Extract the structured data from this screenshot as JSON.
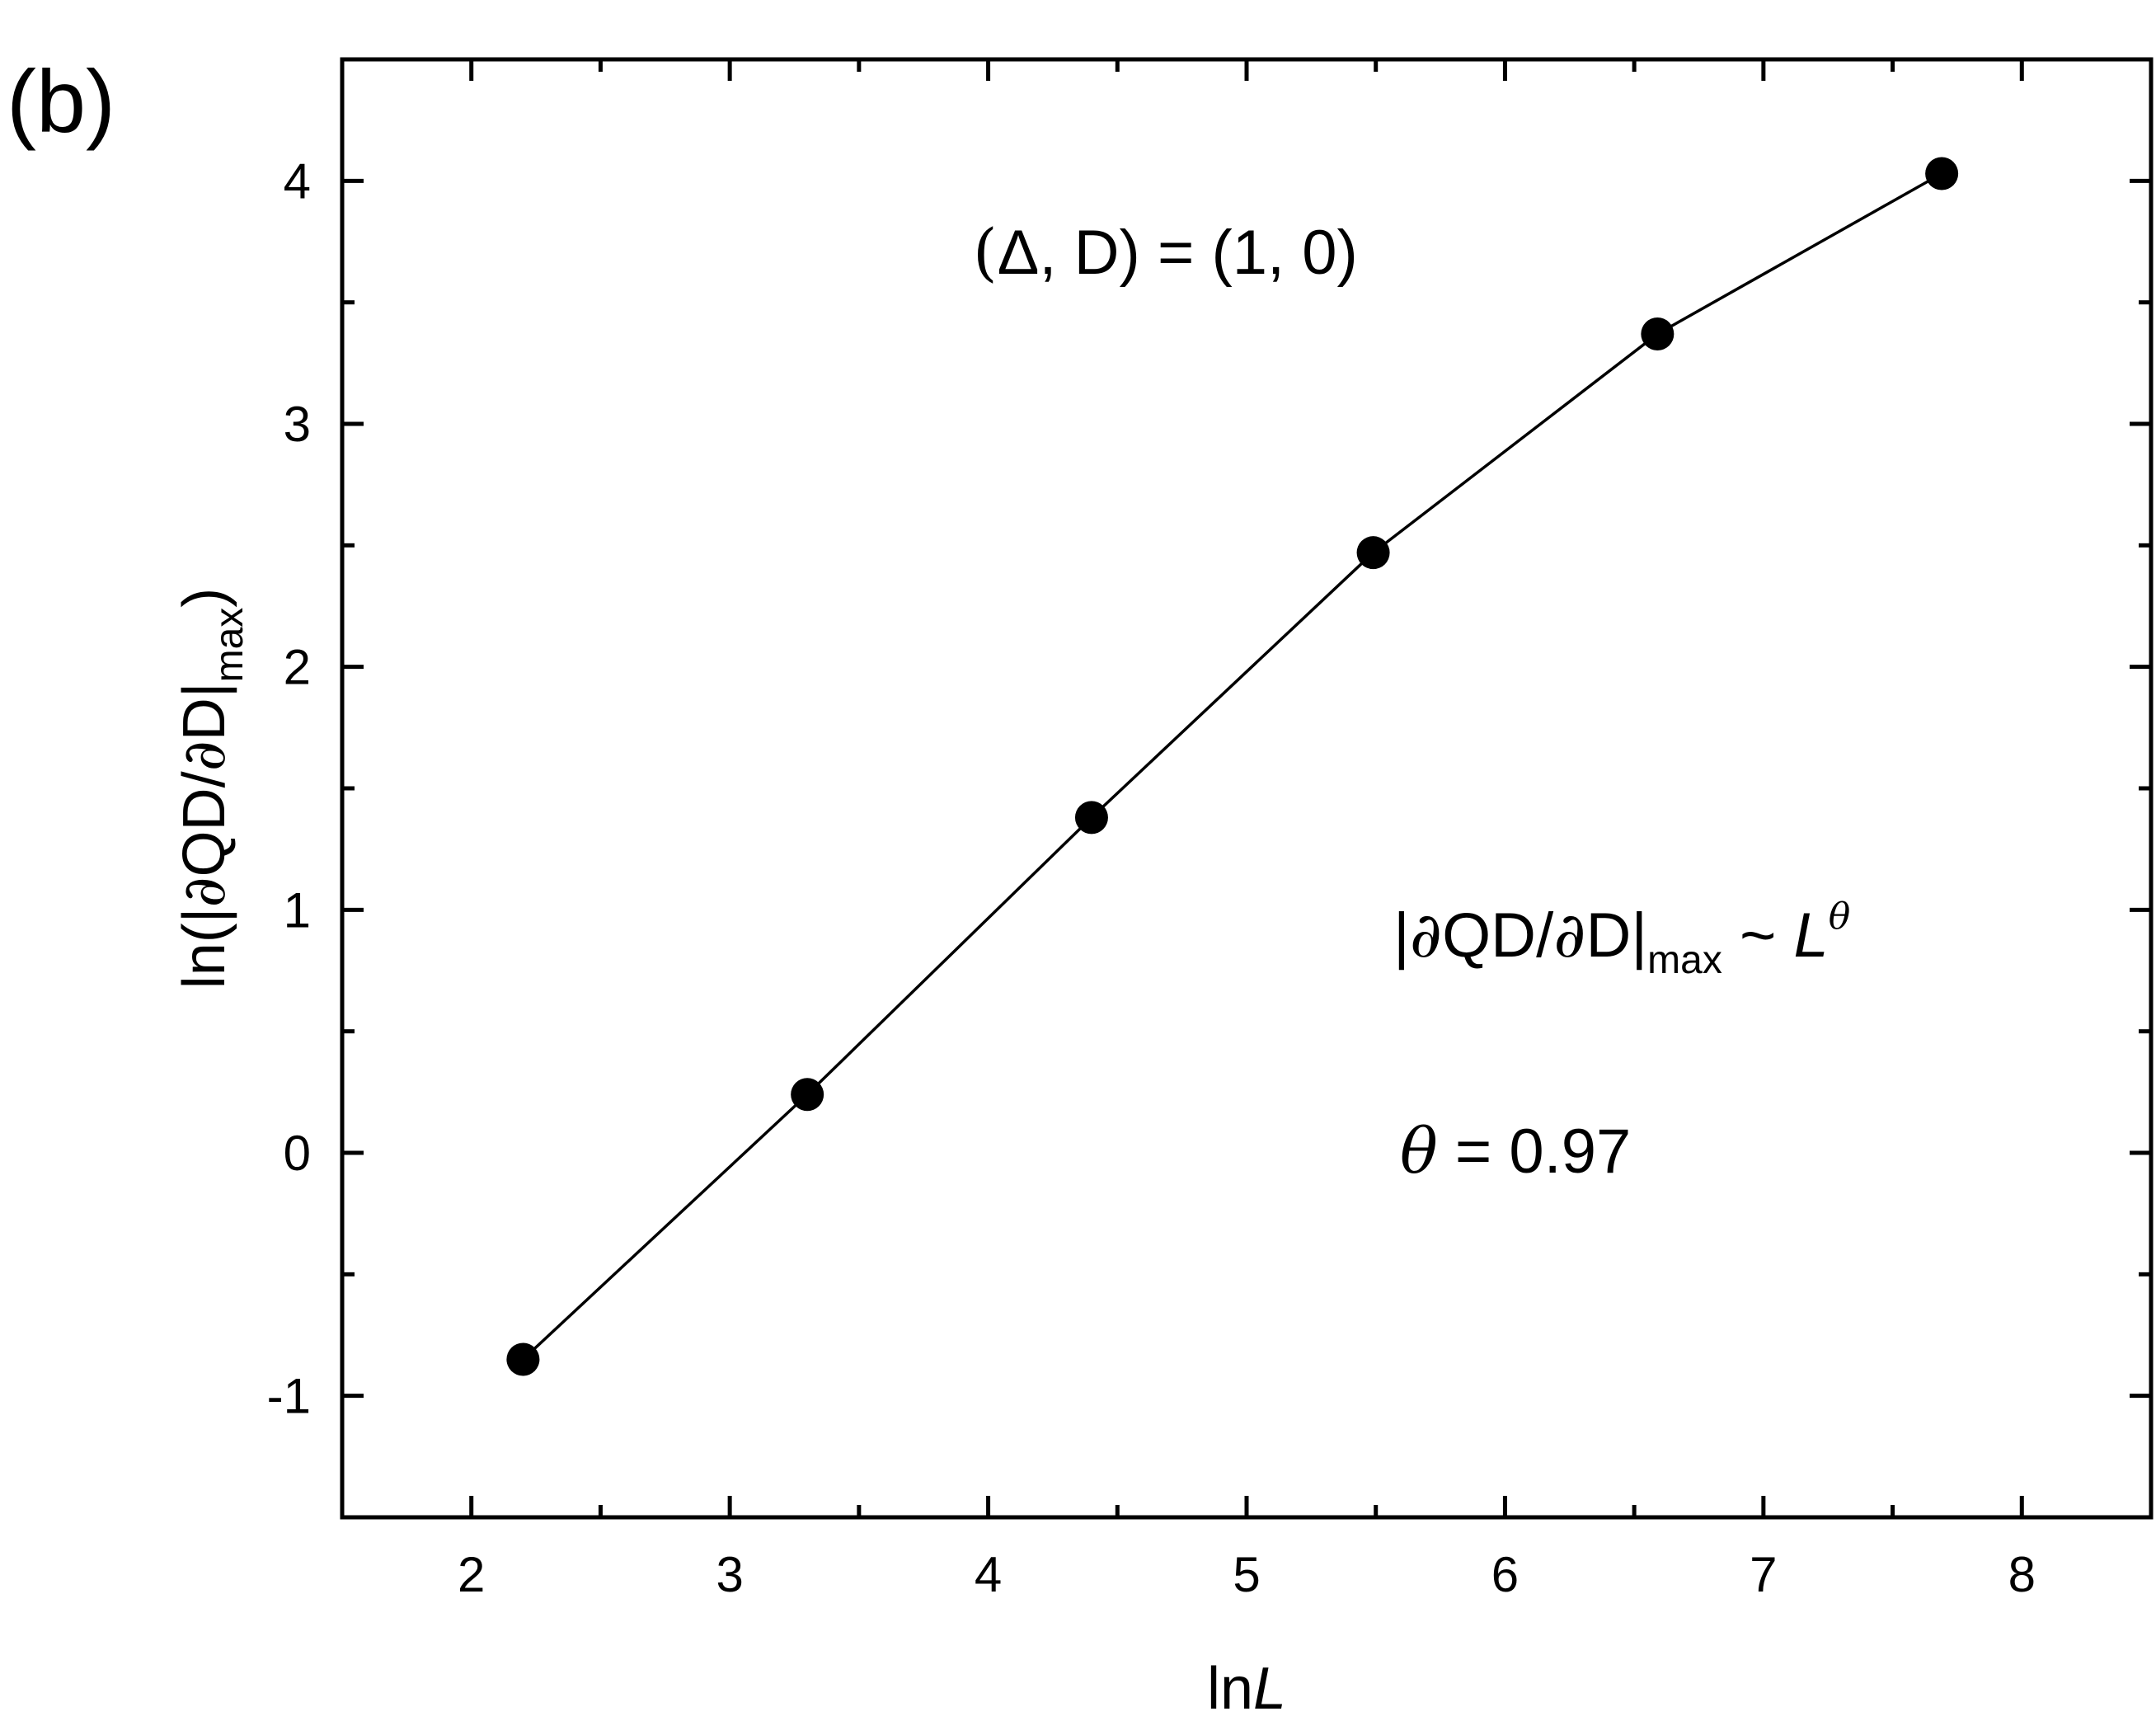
{
  "panel_label": "(b)",
  "annotations": {
    "params": {
      "lhs_open": "(",
      "delta": "Δ",
      "lhs_rest": ", D)",
      "equals": " = (1, 0)"
    },
    "scaling": {
      "bar1": "|",
      "partial1": "∂",
      "mid": "QD/",
      "partial2": "∂",
      "tail": "D|",
      "sub": "max",
      "tilde": " ~ ",
      "L": "L",
      "theta_sup": "θ"
    },
    "theta_value": {
      "symbol": "θ",
      "rest": " = 0.97"
    }
  },
  "chart_data": {
    "type": "line",
    "title": "",
    "xlabel": {
      "prefix": "ln",
      "italic": "L"
    },
    "ylabel": {
      "lead": "ln(|",
      "partial1": "∂",
      "mid": "QD/",
      "partial2": "∂",
      "tail": "D|",
      "sub": "max",
      "close": ")"
    },
    "xlim": [
      1.5,
      8.5
    ],
    "ylim": [
      -1.5,
      4.5
    ],
    "xticks": [
      2,
      3,
      4,
      5,
      6,
      7,
      8
    ],
    "yticks": [
      -1,
      0,
      1,
      2,
      3,
      4
    ],
    "grid": false,
    "series": [
      {
        "x": [
          2.2,
          3.3,
          4.4,
          5.49,
          6.59,
          7.69
        ],
        "y": [
          -0.85,
          0.24,
          1.38,
          2.47,
          3.37,
          4.03
        ]
      }
    ],
    "colors": {
      "line": "#000000",
      "marker": "#000000",
      "axes": "#000000"
    }
  }
}
